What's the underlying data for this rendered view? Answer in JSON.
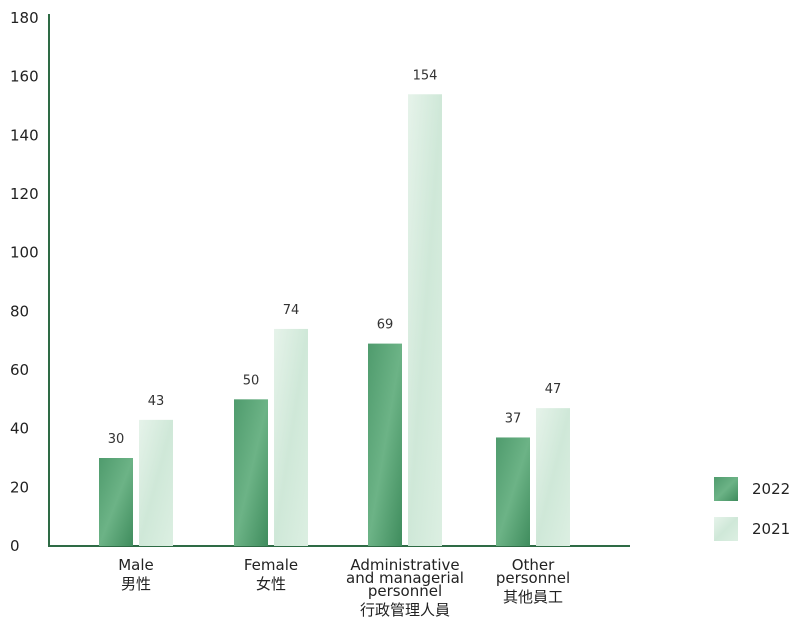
{
  "chart_data": {
    "type": "bar",
    "title": "",
    "xlabel": "",
    "ylabel": "",
    "ylim": [
      0,
      180
    ],
    "yticks": [
      0,
      20,
      40,
      60,
      80,
      100,
      120,
      140,
      160,
      180
    ],
    "grid": false,
    "legend_position": "bottom-right",
    "categories": [
      [
        "Male",
        "男性"
      ],
      [
        "Female",
        "女性"
      ],
      [
        "Administrative",
        "and managerial",
        "personnel",
        "行政管理人員"
      ],
      [
        "Other",
        "personnel",
        "其他員工"
      ]
    ],
    "series": [
      {
        "name": "2022",
        "color": "#5aa57a",
        "values": [
          30,
          50,
          69,
          37
        ]
      },
      {
        "name": "2021",
        "color": "#d3eadc",
        "values": [
          43,
          74,
          154,
          47
        ]
      }
    ],
    "axis_color": "#2e6b45"
  }
}
